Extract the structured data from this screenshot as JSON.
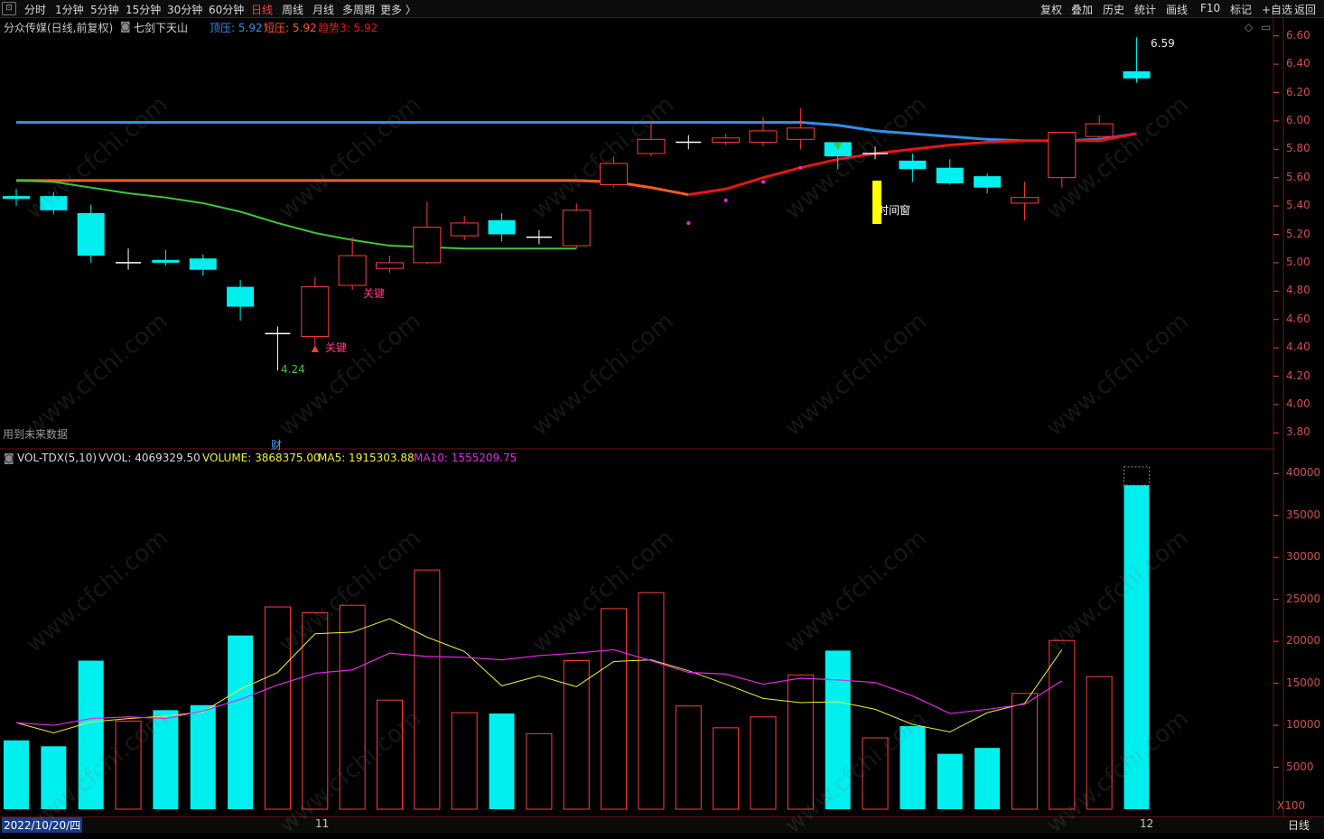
{
  "toolbar": {
    "left": [
      "分时",
      "1分钟",
      "5分钟",
      "15分钟",
      "30分钟",
      "60分钟",
      "日线",
      "周线",
      "月线",
      "多周期",
      "更多 〉"
    ],
    "active": "日线",
    "right": [
      "复权",
      "叠加",
      "历史",
      "统计",
      "画线",
      "F10",
      "标记",
      "+自选",
      "返回"
    ]
  },
  "main_info": {
    "stock": "分众传媒(日线,前复权)",
    "indicator": "七剑下天山",
    "top_label": "顶压:",
    "top_value": "5.92",
    "short_label": "短压:",
    "short_value": "5.92",
    "trend_label": "趋势3:",
    "trend_value": "5.92"
  },
  "vol_info": {
    "name": "VOL-TDX(5,10)",
    "vvol": "VVOL: 4069329.50",
    "volume": "VOLUME: 3868375.00",
    "ma5": "MA5: 1915303.88",
    "ma10": "MA10: 1555209.75"
  },
  "future_data_note": "用到未来数据",
  "finance_marker": "财",
  "annotations": {
    "max_price": "6.59",
    "min_price": "4.24",
    "time_window": "时间窗",
    "signal_a": "关键",
    "signal_b": "关键"
  },
  "x_unit": "X100",
  "period_label": "日线",
  "dates": {
    "start": "2022/10/20/四",
    "nov": "11",
    "dec": "12"
  },
  "colors": {
    "up": "#ff3c3c",
    "down": "#00f0f0",
    "top_line": "#2f8fe8",
    "short_line": "#ff5a1e",
    "trend_line": "#e81414",
    "green_line": "#3cc83c",
    "ma5": "#f0f028",
    "ma10": "#e628e6",
    "axis": "#d24d4d"
  },
  "chart_data": {
    "type": "candlestick",
    "price_axis": {
      "ticks": [
        "6.60",
        "6.40",
        "6.20",
        "6.00",
        "5.80",
        "5.60",
        "5.40",
        "5.20",
        "5.00",
        "4.80",
        "4.60",
        "4.40",
        "4.20",
        "4.00",
        "3.80"
      ],
      "ylim": [
        3.7,
        6.7
      ]
    },
    "volume_axis": {
      "ticks": [
        "40000",
        "35000",
        "30000",
        "25000",
        "20000",
        "15000",
        "10000",
        "5000"
      ],
      "ylim": [
        0,
        41000
      ]
    },
    "candles": [
      {
        "o": 5.47,
        "h": 5.52,
        "l": 5.4,
        "c": 5.45
      },
      {
        "o": 5.47,
        "h": 5.5,
        "l": 5.34,
        "c": 5.37
      },
      {
        "o": 5.35,
        "h": 5.41,
        "l": 5.0,
        "c": 5.05
      },
      {
        "o": 5.0,
        "h": 5.1,
        "l": 4.95,
        "c": 5.0
      },
      {
        "o": 5.02,
        "h": 5.09,
        "l": 4.98,
        "c": 5.0
      },
      {
        "o": 5.03,
        "h": 5.06,
        "l": 4.91,
        "c": 4.95
      },
      {
        "o": 4.83,
        "h": 4.88,
        "l": 4.59,
        "c": 4.69
      },
      {
        "o": 4.5,
        "h": 4.55,
        "l": 4.24,
        "c": 4.5
      },
      {
        "o": 4.48,
        "h": 4.9,
        "l": 4.42,
        "c": 4.83
      },
      {
        "o": 4.84,
        "h": 5.18,
        "l": 4.81,
        "c": 5.05
      },
      {
        "o": 4.96,
        "h": 5.05,
        "l": 4.93,
        "c": 5.0
      },
      {
        "o": 5.0,
        "h": 5.43,
        "l": 4.99,
        "c": 5.25
      },
      {
        "o": 5.19,
        "h": 5.33,
        "l": 5.16,
        "c": 5.28
      },
      {
        "o": 5.3,
        "h": 5.35,
        "l": 5.15,
        "c": 5.2
      },
      {
        "o": 5.17,
        "h": 5.23,
        "l": 5.13,
        "c": 5.18
      },
      {
        "o": 5.12,
        "h": 5.42,
        "l": 5.1,
        "c": 5.37
      },
      {
        "o": 5.55,
        "h": 5.75,
        "l": 5.53,
        "c": 5.7
      },
      {
        "o": 5.77,
        "h": 6.0,
        "l": 5.75,
        "c": 5.87
      },
      {
        "o": 5.85,
        "h": 5.9,
        "l": 5.8,
        "c": 5.85
      },
      {
        "o": 5.85,
        "h": 5.91,
        "l": 5.83,
        "c": 5.88
      },
      {
        "o": 5.85,
        "h": 6.03,
        "l": 5.82,
        "c": 5.93
      },
      {
        "o": 5.87,
        "h": 6.09,
        "l": 5.8,
        "c": 5.95
      },
      {
        "o": 5.85,
        "h": 5.85,
        "l": 5.66,
        "c": 5.75
      },
      {
        "o": 5.77,
        "h": 5.82,
        "l": 5.73,
        "c": 5.77
      },
      {
        "o": 5.72,
        "h": 5.77,
        "l": 5.57,
        "c": 5.66
      },
      {
        "o": 5.67,
        "h": 5.73,
        "l": 5.55,
        "c": 5.56
      },
      {
        "o": 5.61,
        "h": 5.63,
        "l": 5.49,
        "c": 5.53
      },
      {
        "o": 5.42,
        "h": 5.57,
        "l": 5.3,
        "c": 5.46
      },
      {
        "o": 5.6,
        "h": 5.92,
        "l": 5.53,
        "c": 5.92
      },
      {
        "o": 5.89,
        "h": 6.04,
        "l": 5.87,
        "c": 5.98
      },
      {
        "o": 6.35,
        "h": 6.59,
        "l": 6.27,
        "c": 6.3
      }
    ],
    "volume": [
      8200,
      7500,
      17700,
      10500,
      11800,
      12400,
      20700,
      24100,
      23400,
      24300,
      13000,
      28500,
      11500,
      11400,
      9000,
      17700,
      23900,
      25800,
      12300,
      9700,
      11000,
      16000,
      18900,
      8500,
      9900,
      6600,
      7300,
      13800,
      20100,
      15800,
      38600
    ],
    "top_line": [
      5.99,
      5.99,
      5.99,
      5.99,
      5.99,
      5.99,
      5.99,
      5.99,
      5.99,
      5.99,
      5.99,
      5.99,
      5.99,
      5.99,
      5.99,
      5.99,
      5.99,
      5.99,
      5.99,
      5.99,
      5.99,
      5.99,
      5.97,
      5.93,
      5.91,
      5.89,
      5.87,
      5.86,
      5.86,
      5.87,
      5.91
    ],
    "short_line": [
      5.58,
      5.58,
      5.58,
      5.58,
      5.58,
      5.58,
      5.58,
      5.58,
      5.58,
      5.58,
      5.58,
      5.58,
      5.58,
      5.58,
      5.58,
      5.58,
      5.57,
      5.53,
      5.48,
      5.52,
      5.6,
      5.67,
      5.73,
      5.77,
      5.8,
      5.83,
      5.85,
      5.86,
      5.86,
      5.86,
      5.91
    ],
    "green_line": [
      5.58,
      5.57,
      5.53,
      5.49,
      5.46,
      5.42,
      5.36,
      5.28,
      5.21,
      5.16,
      5.12,
      5.11,
      5.1,
      5.1,
      5.1,
      5.1
    ],
    "dots": [
      [
        18,
        5.28
      ],
      [
        19,
        5.44
      ],
      [
        20,
        5.57
      ],
      [
        21,
        5.67
      ]
    ],
    "ma5": [
      10300,
      9100,
      10400,
      10800,
      11100,
      11600,
      14300,
      16300,
      20900,
      21100,
      22700,
      20500,
      18800,
      14700,
      15900,
      14600,
      17600,
      17800,
      16500,
      14900,
      13200,
      12700,
      12800,
      11900,
      10100,
      9200,
      11500,
      12600,
      19000
    ],
    "ma10": [
      10300,
      10000,
      10800,
      11000,
      10800,
      11700,
      13100,
      14800,
      16200,
      16600,
      18600,
      18200,
      18100,
      17800,
      18300,
      18600,
      19000,
      17700,
      16300,
      16100,
      14900,
      15600,
      15400,
      15100,
      13500,
      11400,
      11900,
      12500,
      15300
    ]
  }
}
